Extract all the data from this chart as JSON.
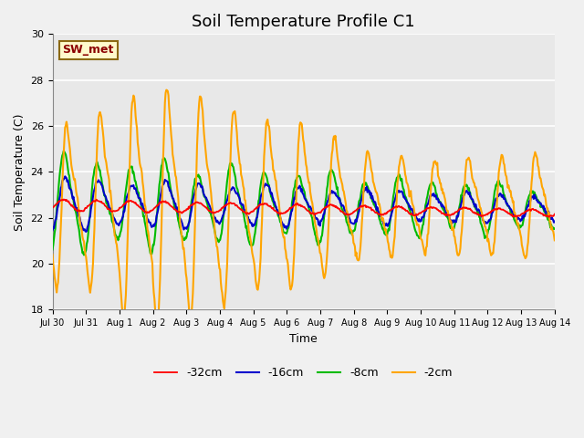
{
  "title": "Soil Temperature Profile C1",
  "xlabel": "Time",
  "ylabel": "Soil Temperature (C)",
  "ylim": [
    18,
    30
  ],
  "yticks": [
    18,
    20,
    22,
    24,
    26,
    28,
    30
  ],
  "annotation_text": "SW_met",
  "annotation_color": "#8B0000",
  "annotation_bg": "#FFFACD",
  "annotation_border": "#8B6914",
  "line_colors": {
    "-32cm": "#FF0000",
    "-16cm": "#0000CC",
    "-8cm": "#00BB00",
    "-2cm": "#FFA500"
  },
  "line_widths": {
    "-32cm": 1.3,
    "-16cm": 1.5,
    "-8cm": 1.5,
    "-2cm": 1.5
  },
  "bg_color": "#F0F0F0",
  "plot_bg_color": "#E8E8E8",
  "grid_color": "#FFFFFF",
  "x_tick_labels": [
    "Jul 30",
    "Jul 31",
    "Aug 1",
    "Aug 2",
    "Aug 3",
    "Aug 4",
    "Aug 5",
    "Aug 6",
    "Aug 7",
    "Aug 8",
    "Aug 9",
    "Aug 10",
    "Aug 11",
    "Aug 12",
    "Aug 13",
    "Aug 14"
  ],
  "title_fontsize": 13,
  "axis_label_fontsize": 9,
  "tick_fontsize": 8,
  "legend_fontsize": 9
}
